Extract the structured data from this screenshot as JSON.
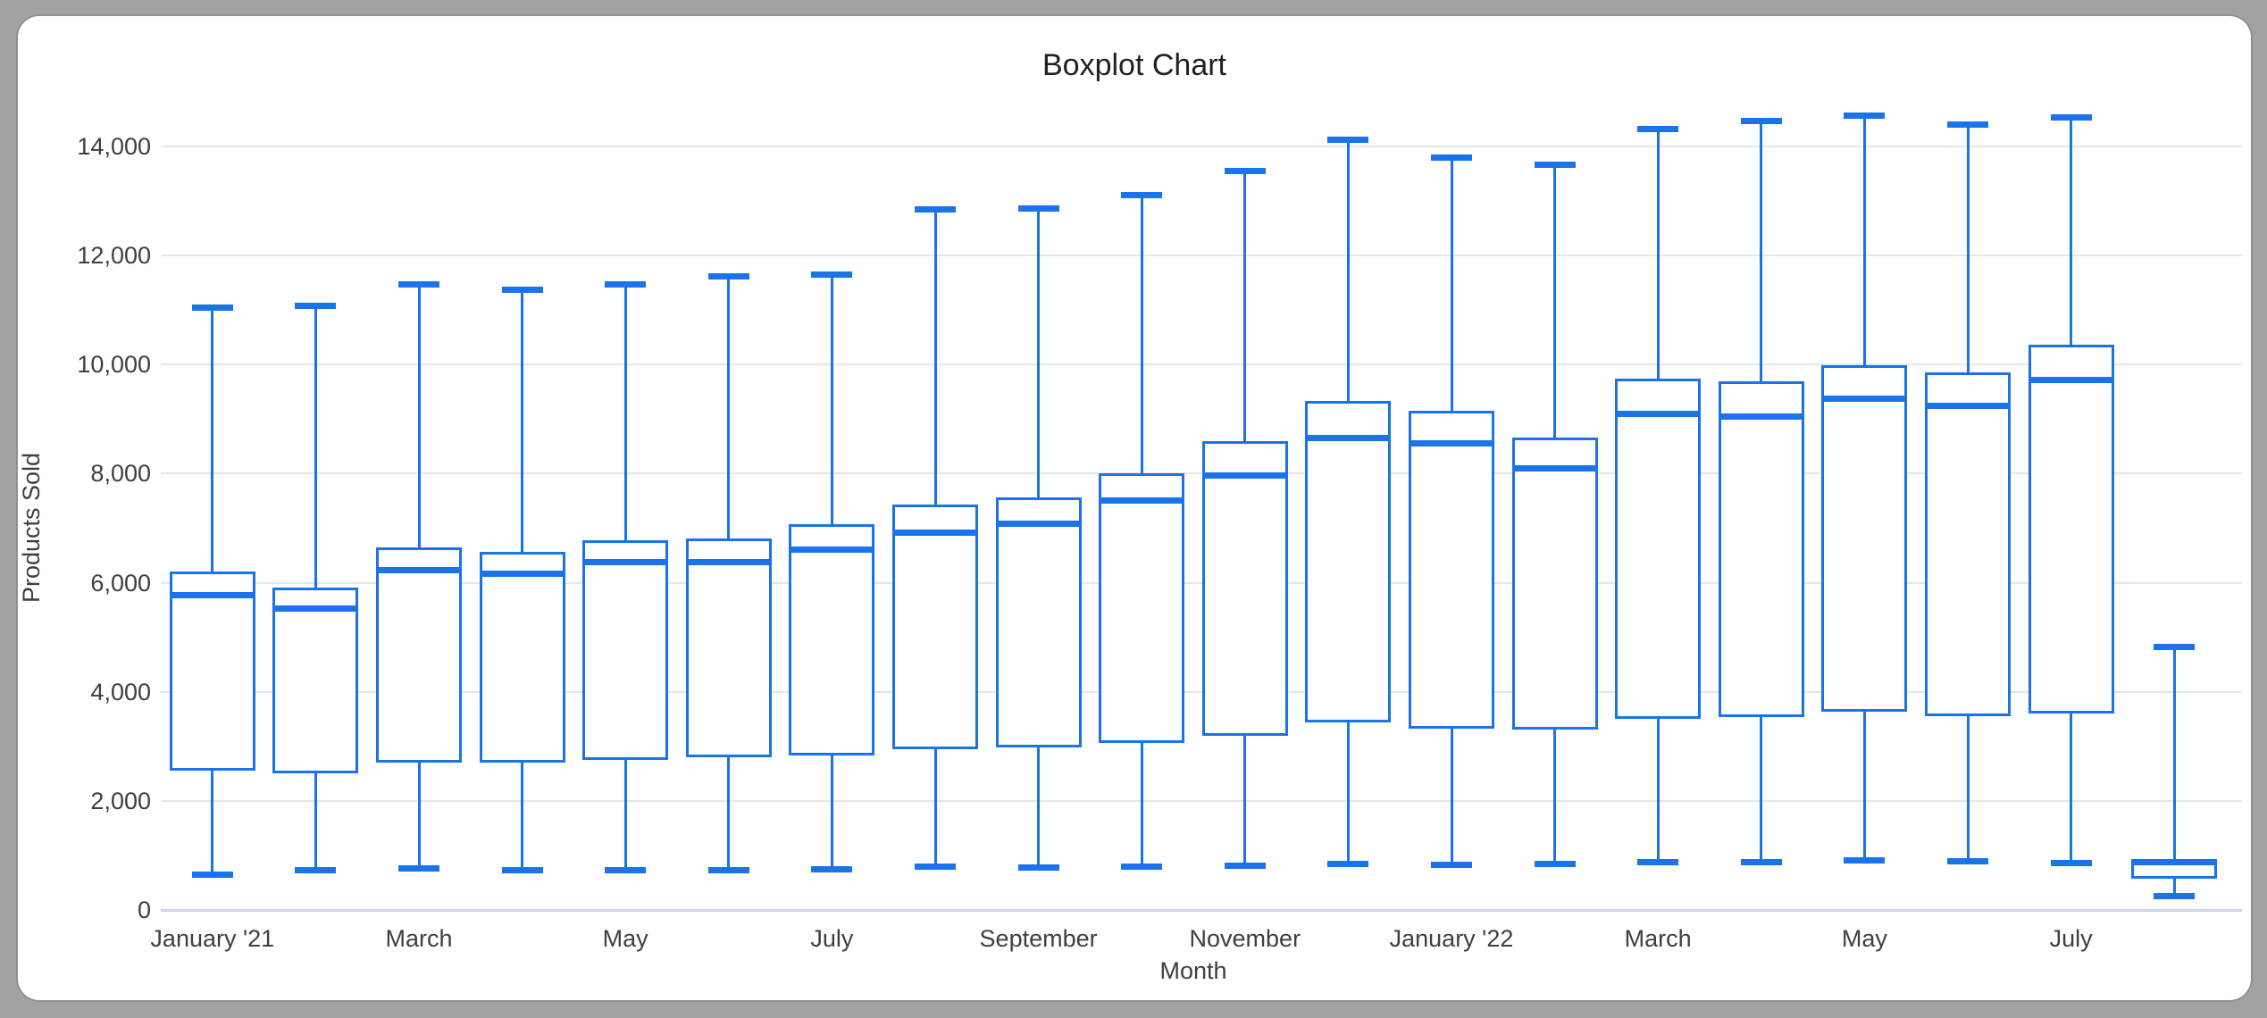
{
  "window": {
    "background_color": "#a2a2a2",
    "card_background": "#ffffff"
  },
  "chart_data": {
    "type": "boxplot",
    "title": "Boxplot Chart",
    "xlabel": "Month",
    "ylabel": "Products Sold",
    "ylim": [
      0,
      14000
    ],
    "grid": true,
    "accent_color": "#1a73e8",
    "gridline_color": "#e6e6e6",
    "baseline_color": "#ccd3ea",
    "y_ticks": [
      {
        "label": "0",
        "value": 0
      },
      {
        "label": "2,000",
        "value": 2000
      },
      {
        "label": "4,000",
        "value": 4000
      },
      {
        "label": "6,000",
        "value": 6000
      },
      {
        "label": "8,000",
        "value": 8000
      },
      {
        "label": "10,000",
        "value": 10000
      },
      {
        "label": "12,000",
        "value": 12000
      },
      {
        "label": "14,000",
        "value": 14000
      }
    ],
    "x_ticks": [
      {
        "label": "January '21",
        "slot": 0
      },
      {
        "label": "March",
        "slot": 2
      },
      {
        "label": "May",
        "slot": 4
      },
      {
        "label": "July",
        "slot": 6
      },
      {
        "label": "September",
        "slot": 8
      },
      {
        "label": "November",
        "slot": 10
      },
      {
        "label": "January '22",
        "slot": 12
      },
      {
        "label": "March",
        "slot": 14
      },
      {
        "label": "May",
        "slot": 16
      },
      {
        "label": "July",
        "slot": 18
      }
    ],
    "boxes": [
      {
        "min": 650,
        "q1": 2550,
        "median": 5780,
        "q3": 6200,
        "max": 11050
      },
      {
        "min": 730,
        "q1": 2500,
        "median": 5530,
        "q3": 5910,
        "max": 11080
      },
      {
        "min": 760,
        "q1": 2700,
        "median": 6230,
        "q3": 6640,
        "max": 11470
      },
      {
        "min": 730,
        "q1": 2700,
        "median": 6160,
        "q3": 6570,
        "max": 11380
      },
      {
        "min": 730,
        "q1": 2750,
        "median": 6370,
        "q3": 6780,
        "max": 11470
      },
      {
        "min": 730,
        "q1": 2800,
        "median": 6370,
        "q3": 6810,
        "max": 11620
      },
      {
        "min": 740,
        "q1": 2830,
        "median": 6610,
        "q3": 7080,
        "max": 11650
      },
      {
        "min": 790,
        "q1": 2950,
        "median": 6910,
        "q3": 7430,
        "max": 12840
      },
      {
        "min": 770,
        "q1": 2980,
        "median": 7080,
        "q3": 7560,
        "max": 12870
      },
      {
        "min": 790,
        "q1": 3060,
        "median": 7500,
        "q3": 8010,
        "max": 13100
      },
      {
        "min": 805,
        "q1": 3200,
        "median": 7960,
        "q3": 8590,
        "max": 13550
      },
      {
        "min": 850,
        "q1": 3440,
        "median": 8660,
        "q3": 9330,
        "max": 14130
      },
      {
        "min": 830,
        "q1": 3330,
        "median": 8550,
        "q3": 9150,
        "max": 13790
      },
      {
        "min": 850,
        "q1": 3300,
        "median": 8100,
        "q3": 8660,
        "max": 13660
      },
      {
        "min": 870,
        "q1": 3510,
        "median": 9090,
        "q3": 9750,
        "max": 14320
      },
      {
        "min": 870,
        "q1": 3530,
        "median": 9040,
        "q3": 9700,
        "max": 14460
      },
      {
        "min": 910,
        "q1": 3630,
        "median": 9370,
        "q3": 9990,
        "max": 14560
      },
      {
        "min": 885,
        "q1": 3550,
        "median": 9240,
        "q3": 9860,
        "max": 14400
      },
      {
        "min": 860,
        "q1": 3600,
        "median": 9710,
        "q3": 10360,
        "max": 14540
      },
      {
        "min": 250,
        "q1": 580,
        "median": 880,
        "q3": 900,
        "max": 4830
      }
    ]
  }
}
